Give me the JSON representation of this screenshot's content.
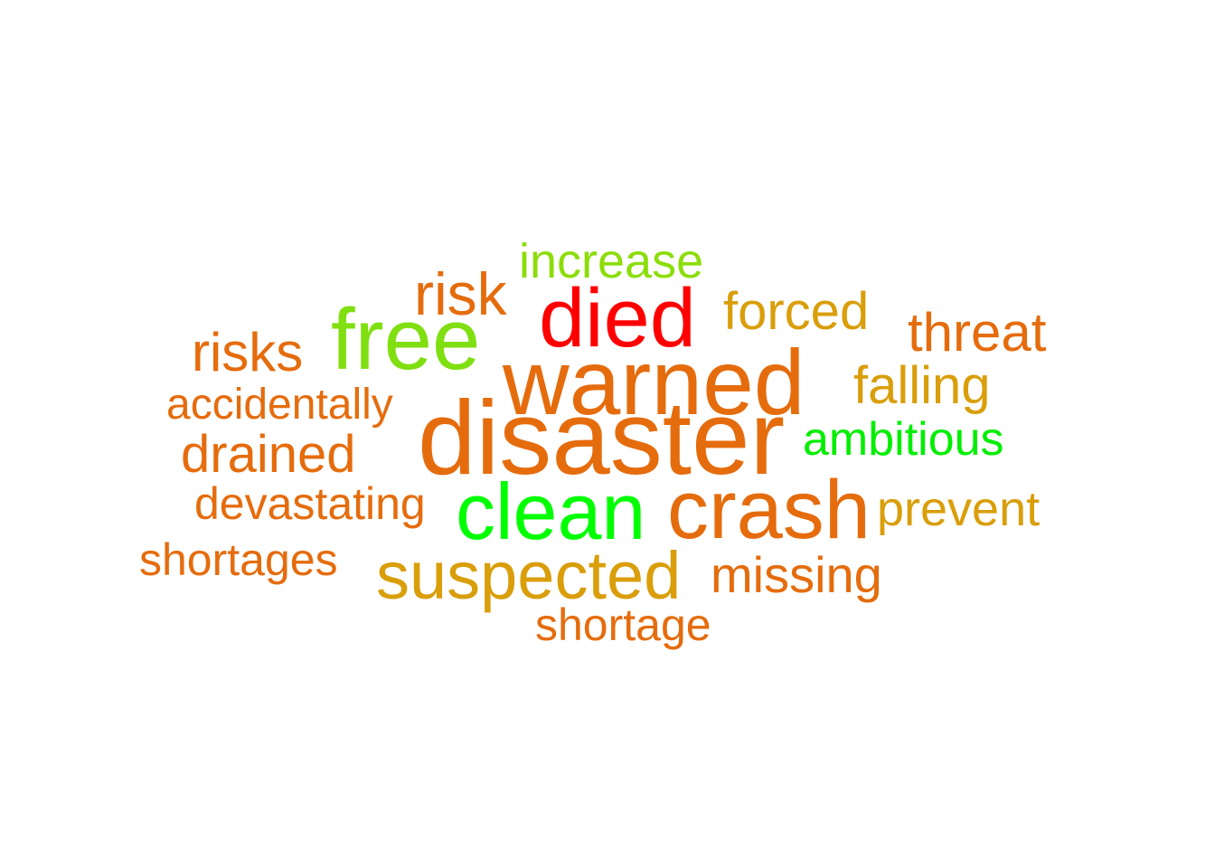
{
  "words": {
    "increase": {
      "text": "increase",
      "color": "#8cdd0a"
    },
    "risk": {
      "text": "risk",
      "color": "#e56c0d"
    },
    "died": {
      "text": "died",
      "color": "#ff0000"
    },
    "forced": {
      "text": "forced",
      "color": "#d99e0a"
    },
    "free": {
      "text": "free",
      "color": "#80df10"
    },
    "threat": {
      "text": "threat",
      "color": "#e56c0d"
    },
    "risks": {
      "text": "risks",
      "color": "#e56c0d"
    },
    "warned": {
      "text": "warned",
      "color": "#e56c0d"
    },
    "falling": {
      "text": "falling",
      "color": "#d99e0a"
    },
    "accidentally": {
      "text": "accidentally",
      "color": "#e56c0d"
    },
    "disaster": {
      "text": "disaster",
      "color": "#e56c0d"
    },
    "ambitious": {
      "text": "ambitious",
      "color": "#00ee00"
    },
    "drained": {
      "text": "drained",
      "color": "#e56c0d"
    },
    "devastating": {
      "text": "devastating",
      "color": "#e56c0d"
    },
    "clean": {
      "text": "clean",
      "color": "#00ff00"
    },
    "crash": {
      "text": "crash",
      "color": "#e56c0d"
    },
    "prevent": {
      "text": "prevent",
      "color": "#d99e0a"
    },
    "shortages": {
      "text": "shortages",
      "color": "#e56c0d"
    },
    "suspected": {
      "text": "suspected",
      "color": "#d99e0a"
    },
    "missing": {
      "text": "missing",
      "color": "#e56c0d"
    },
    "shortage": {
      "text": "shortage",
      "color": "#e56c0d"
    }
  }
}
